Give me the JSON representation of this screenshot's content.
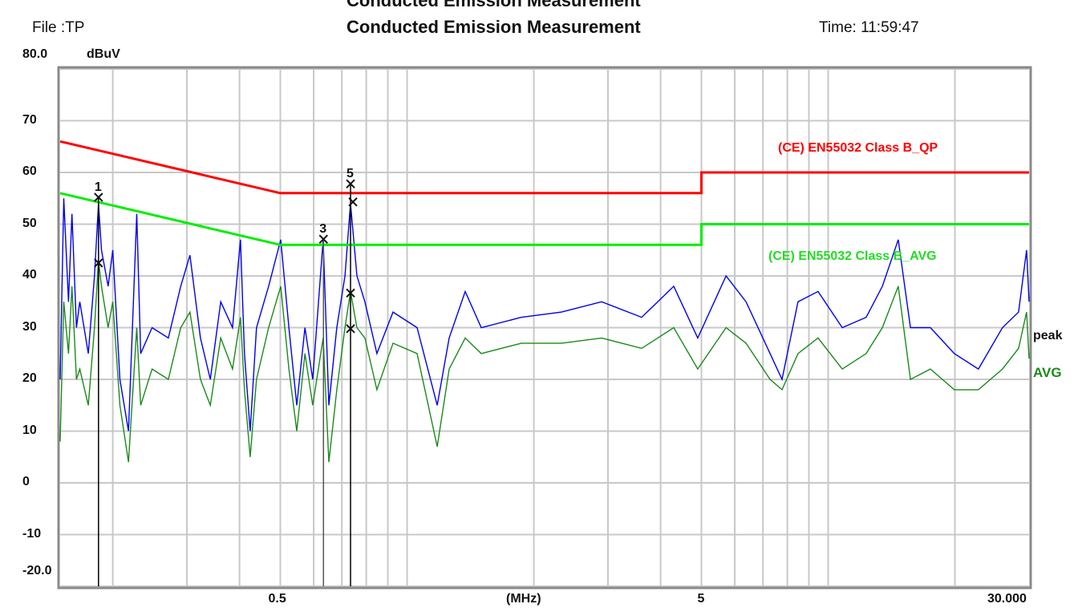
{
  "header": {
    "top_title_cut": "Conducted Emission Measurement",
    "file": "File :TP",
    "title": "Conducted Emission Measurement",
    "time": "Time: 11:59:47"
  },
  "chart_data": {
    "type": "line",
    "title": "Conducted Emission Measurement",
    "ylabel": "dBuV",
    "xlabel": "(MHz)",
    "x_scale": "log",
    "xlim": [
      0.15,
      30.0
    ],
    "ylim": [
      -20,
      80
    ],
    "grid": true,
    "x_tick_labels": [
      {
        "value": 0.5,
        "label": "0.5"
      },
      {
        "value": 5,
        "label": "5"
      },
      {
        "value": 30.0,
        "label": "30.000"
      }
    ],
    "y_tick_labels": [
      {
        "value": 80,
        "label": "80.0"
      },
      {
        "value": 70,
        "label": "70"
      },
      {
        "value": 60,
        "label": "60"
      },
      {
        "value": 50,
        "label": "50"
      },
      {
        "value": 40,
        "label": "40"
      },
      {
        "value": 30,
        "label": "30"
      },
      {
        "value": 20,
        "label": "20"
      },
      {
        "value": 10,
        "label": "10"
      },
      {
        "value": 0,
        "label": "0"
      },
      {
        "value": -10,
        "label": "-10"
      },
      {
        "value": -20,
        "label": "-20.0"
      }
    ],
    "x_gridlines": [
      0.2,
      0.3,
      0.4,
      0.5,
      0.6,
      0.7,
      0.8,
      0.9,
      1,
      2,
      3,
      4,
      5,
      6,
      7,
      8,
      9,
      10,
      20
    ],
    "limits": [
      {
        "name": "(CE) EN55032 Class B_QP",
        "color": "#ff0000",
        "points": [
          [
            0.15,
            66
          ],
          [
            0.5,
            56
          ],
          [
            5,
            56
          ],
          [
            5,
            60
          ],
          [
            30,
            60
          ]
        ]
      },
      {
        "name": "(CE) EN55032 Class B_AVG",
        "color": "#00ee00",
        "points": [
          [
            0.15,
            56
          ],
          [
            0.5,
            46
          ],
          [
            5,
            46
          ],
          [
            5,
            50
          ],
          [
            30,
            50
          ]
        ]
      }
    ],
    "series": [
      {
        "name": "peak",
        "color": "#0000ee",
        "points": [
          [
            0.15,
            20
          ],
          [
            0.153,
            55
          ],
          [
            0.157,
            35
          ],
          [
            0.16,
            52
          ],
          [
            0.164,
            30
          ],
          [
            0.167,
            35
          ],
          [
            0.175,
            25
          ],
          [
            0.181,
            40
          ],
          [
            0.185,
            54
          ],
          [
            0.188,
            45
          ],
          [
            0.195,
            38
          ],
          [
            0.2,
            45
          ],
          [
            0.208,
            20
          ],
          [
            0.218,
            10
          ],
          [
            0.228,
            52
          ],
          [
            0.233,
            25
          ],
          [
            0.248,
            30
          ],
          [
            0.271,
            28
          ],
          [
            0.29,
            38
          ],
          [
            0.305,
            44
          ],
          [
            0.323,
            28
          ],
          [
            0.341,
            20
          ],
          [
            0.361,
            35
          ],
          [
            0.385,
            30
          ],
          [
            0.402,
            47
          ],
          [
            0.411,
            25
          ],
          [
            0.424,
            10
          ],
          [
            0.439,
            30
          ],
          [
            0.469,
            38
          ],
          [
            0.501,
            47
          ],
          [
            0.524,
            30
          ],
          [
            0.547,
            15
          ],
          [
            0.572,
            30
          ],
          [
            0.597,
            20
          ],
          [
            0.632,
            47
          ],
          [
            0.652,
            15
          ],
          [
            0.681,
            30
          ],
          [
            0.712,
            40
          ],
          [
            0.734,
            54
          ],
          [
            0.76,
            40
          ],
          [
            0.794,
            35
          ],
          [
            0.848,
            25
          ],
          [
            0.926,
            33
          ],
          [
            1.056,
            30
          ],
          [
            1.179,
            15
          ],
          [
            1.259,
            28
          ],
          [
            1.374,
            37
          ],
          [
            1.5,
            30
          ],
          [
            1.868,
            32
          ],
          [
            2.326,
            33
          ],
          [
            2.897,
            35
          ],
          [
            3.606,
            32
          ],
          [
            4.298,
            38
          ],
          [
            4.9,
            28
          ],
          [
            5.72,
            40
          ],
          [
            6.38,
            35
          ],
          [
            7.28,
            25
          ],
          [
            7.77,
            20
          ],
          [
            8.48,
            35
          ],
          [
            9.46,
            37
          ],
          [
            10.8,
            30
          ],
          [
            12.31,
            32
          ],
          [
            13.45,
            38
          ],
          [
            14.67,
            47
          ],
          [
            15.68,
            30
          ],
          [
            17.49,
            30
          ],
          [
            19.93,
            25
          ],
          [
            22.74,
            22
          ],
          [
            25.94,
            30
          ],
          [
            28.32,
            33
          ],
          [
            29.6,
            45
          ],
          [
            30.0,
            35
          ]
        ]
      },
      {
        "name": "AVG",
        "color": "#1a8a1a",
        "points": [
          [
            0.15,
            8
          ],
          [
            0.153,
            35
          ],
          [
            0.157,
            25
          ],
          [
            0.16,
            38
          ],
          [
            0.164,
            20
          ],
          [
            0.167,
            22
          ],
          [
            0.175,
            15
          ],
          [
            0.181,
            30
          ],
          [
            0.185,
            43
          ],
          [
            0.188,
            38
          ],
          [
            0.195,
            30
          ],
          [
            0.2,
            35
          ],
          [
            0.208,
            15
          ],
          [
            0.218,
            4
          ],
          [
            0.228,
            30
          ],
          [
            0.233,
            15
          ],
          [
            0.248,
            22
          ],
          [
            0.271,
            20
          ],
          [
            0.29,
            30
          ],
          [
            0.305,
            33
          ],
          [
            0.323,
            20
          ],
          [
            0.341,
            15
          ],
          [
            0.361,
            28
          ],
          [
            0.385,
            22
          ],
          [
            0.402,
            32
          ],
          [
            0.411,
            18
          ],
          [
            0.424,
            5
          ],
          [
            0.439,
            20
          ],
          [
            0.469,
            30
          ],
          [
            0.501,
            38
          ],
          [
            0.524,
            22
          ],
          [
            0.547,
            10
          ],
          [
            0.572,
            25
          ],
          [
            0.597,
            15
          ],
          [
            0.632,
            28
          ],
          [
            0.652,
            4
          ],
          [
            0.681,
            18
          ],
          [
            0.712,
            30
          ],
          [
            0.734,
            37
          ],
          [
            0.76,
            30
          ],
          [
            0.794,
            28
          ],
          [
            0.848,
            18
          ],
          [
            0.926,
            27
          ],
          [
            1.056,
            25
          ],
          [
            1.179,
            7
          ],
          [
            1.259,
            22
          ],
          [
            1.374,
            28
          ],
          [
            1.5,
            25
          ],
          [
            1.868,
            27
          ],
          [
            2.326,
            27
          ],
          [
            2.897,
            28
          ],
          [
            3.606,
            26
          ],
          [
            4.298,
            30
          ],
          [
            4.9,
            22
          ],
          [
            5.72,
            30
          ],
          [
            6.38,
            27
          ],
          [
            7.28,
            20
          ],
          [
            7.77,
            18
          ],
          [
            8.48,
            25
          ],
          [
            9.46,
            28
          ],
          [
            10.8,
            22
          ],
          [
            12.31,
            25
          ],
          [
            13.45,
            30
          ],
          [
            14.67,
            38
          ],
          [
            15.68,
            20
          ],
          [
            17.49,
            22
          ],
          [
            19.93,
            18
          ],
          [
            22.74,
            18
          ],
          [
            25.94,
            22
          ],
          [
            28.32,
            26
          ],
          [
            29.6,
            33
          ],
          [
            30.0,
            24
          ]
        ]
      }
    ],
    "markers": [
      {
        "label": "1",
        "freq": 0.185,
        "peak": 55.2,
        "avg": 42.5
      },
      {
        "label": "3",
        "freq": 0.633,
        "peak": 47.1
      },
      {
        "label": "5",
        "freq": 0.734,
        "peak": 57.8,
        "qp": 54.3,
        "avg": 36.7,
        "avg2": 29.8
      }
    ]
  }
}
